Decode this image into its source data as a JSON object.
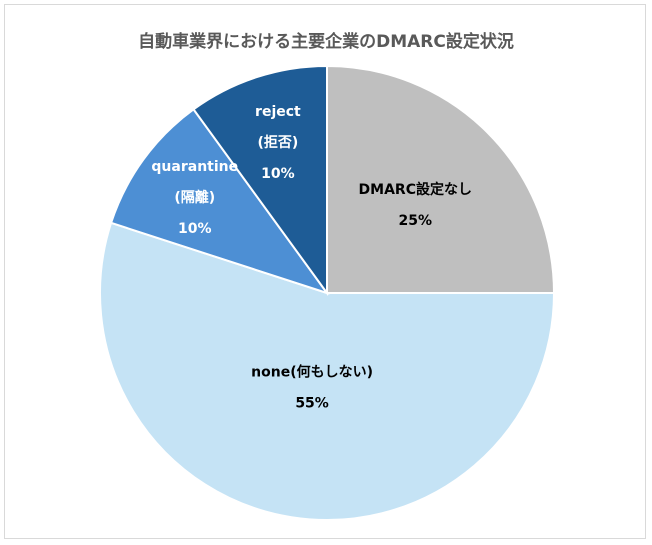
{
  "chart_data": {
    "type": "pie",
    "title": "自動車業界における主要企業のDMARC設定状況",
    "start_angle_deg": 0,
    "direction": "clockwise",
    "slices": [
      {
        "label": "DMARC設定なし",
        "label_lines": [
          "DMARC設定なし"
        ],
        "value": 25,
        "value_label": "25%",
        "color": "#bfbfbf",
        "text_color": "#000000"
      },
      {
        "label": "none(何もしない)",
        "label_lines": [
          "none(何もしない)"
        ],
        "value": 55,
        "value_label": "55%",
        "color": "#c5e3f5",
        "text_color": "#000000"
      },
      {
        "label": "quarantine (隔離)",
        "label_lines": [
          "quarantine",
          "(隔離)"
        ],
        "value": 10,
        "value_label": "10%",
        "color": "#4d8fd4",
        "text_color": "#ffffff"
      },
      {
        "label": "reject (拒否)",
        "label_lines": [
          "reject",
          "(拒否)"
        ],
        "value": 10,
        "value_label": "10%",
        "color": "#1e5c96",
        "text_color": "#ffffff"
      }
    ]
  }
}
